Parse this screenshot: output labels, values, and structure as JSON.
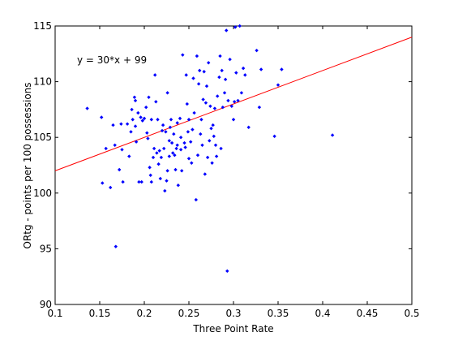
{
  "chart_data": {
    "type": "scatter",
    "title": "",
    "xlabel": "Three Point Rate",
    "ylabel": "ORtg - points per 100 possessions",
    "xlim": [
      0.1,
      0.5
    ],
    "ylim": [
      90,
      115
    ],
    "x_ticks": [
      0.1,
      0.15,
      0.2,
      0.25,
      0.3,
      0.35,
      0.4,
      0.45,
      0.5
    ],
    "x_tick_labels": [
      "0.1",
      "0.15",
      "0.2",
      "0.25",
      "0.3",
      "0.35",
      "0.4",
      "0.45",
      "0.5"
    ],
    "y_ticks": [
      90,
      95,
      100,
      105,
      110,
      115
    ],
    "y_tick_labels": [
      "90",
      "95",
      "100",
      "105",
      "110",
      "115"
    ],
    "grid": false,
    "annotation": "y = 30*x + 99",
    "marker_color": "#0000ff",
    "fit_color": "#ff0000",
    "fit_line": {
      "slope": 30,
      "intercept": 99,
      "x_range": [
        0.1,
        0.5
      ]
    },
    "points": [
      [
        0.136,
        107.6
      ],
      [
        0.152,
        106.8
      ],
      [
        0.153,
        100.9
      ],
      [
        0.157,
        104.0
      ],
      [
        0.162,
        100.5
      ],
      [
        0.165,
        106.1
      ],
      [
        0.167,
        104.3
      ],
      [
        0.168,
        95.2
      ],
      [
        0.172,
        102.1
      ],
      [
        0.174,
        106.2
      ],
      [
        0.175,
        103.9
      ],
      [
        0.176,
        101.0
      ],
      [
        0.181,
        106.2
      ],
      [
        0.183,
        103.3
      ],
      [
        0.185,
        105.5
      ],
      [
        0.186,
        107.5
      ],
      [
        0.187,
        106.6
      ],
      [
        0.189,
        108.6
      ],
      [
        0.19,
        108.3
      ],
      [
        0.19,
        106.0
      ],
      [
        0.191,
        104.6
      ],
      [
        0.193,
        107.2
      ],
      [
        0.194,
        101.0
      ],
      [
        0.196,
        106.8
      ],
      [
        0.197,
        101.0
      ],
      [
        0.198,
        106.5
      ],
      [
        0.2,
        106.7
      ],
      [
        0.202,
        107.7
      ],
      [
        0.203,
        105.4
      ],
      [
        0.204,
        104.9
      ],
      [
        0.205,
        108.6
      ],
      [
        0.206,
        102.3
      ],
      [
        0.207,
        101.6
      ],
      [
        0.208,
        101.0
      ],
      [
        0.208,
        106.6
      ],
      [
        0.21,
        103.2
      ],
      [
        0.211,
        104.0
      ],
      [
        0.212,
        110.6
      ],
      [
        0.213,
        108.2
      ],
      [
        0.214,
        103.6
      ],
      [
        0.215,
        106.6
      ],
      [
        0.216,
        102.6
      ],
      [
        0.217,
        103.8
      ],
      [
        0.218,
        101.3
      ],
      [
        0.219,
        103.2
      ],
      [
        0.22,
        105.6
      ],
      [
        0.221,
        106.1
      ],
      [
        0.222,
        104.0
      ],
      [
        0.223,
        100.2
      ],
      [
        0.224,
        105.5
      ],
      [
        0.225,
        101.1
      ],
      [
        0.226,
        102.0
      ],
      [
        0.226,
        109.0
      ],
      [
        0.228,
        103.3
      ],
      [
        0.228,
        104.7
      ],
      [
        0.229,
        105.9
      ],
      [
        0.23,
        106.6
      ],
      [
        0.231,
        104.5
      ],
      [
        0.232,
        103.6
      ],
      [
        0.233,
        105.3
      ],
      [
        0.234,
        103.4
      ],
      [
        0.235,
        102.1
      ],
      [
        0.236,
        104.0
      ],
      [
        0.237,
        106.3
      ],
      [
        0.237,
        104.3
      ],
      [
        0.238,
        100.7
      ],
      [
        0.24,
        106.7
      ],
      [
        0.241,
        105.0
      ],
      [
        0.241,
        103.9
      ],
      [
        0.242,
        102.0
      ],
      [
        0.243,
        112.4
      ],
      [
        0.245,
        104.5
      ],
      [
        0.246,
        104.1
      ],
      [
        0.247,
        110.6
      ],
      [
        0.248,
        108.0
      ],
      [
        0.249,
        105.5
      ],
      [
        0.25,
        106.6
      ],
      [
        0.25,
        103.1
      ],
      [
        0.252,
        104.6
      ],
      [
        0.253,
        102.7
      ],
      [
        0.254,
        105.7
      ],
      [
        0.255,
        110.3
      ],
      [
        0.256,
        107.2
      ],
      [
        0.258,
        99.4
      ],
      [
        0.259,
        112.3
      ],
      [
        0.26,
        103.4
      ],
      [
        0.261,
        109.8
      ],
      [
        0.262,
        111.0
      ],
      [
        0.263,
        105.3
      ],
      [
        0.264,
        106.6
      ],
      [
        0.265,
        104.3
      ],
      [
        0.266,
        108.4
      ],
      [
        0.267,
        110.9
      ],
      [
        0.268,
        101.7
      ],
      [
        0.269,
        108.1
      ],
      [
        0.27,
        109.6
      ],
      [
        0.271,
        103.2
      ],
      [
        0.272,
        111.7
      ],
      [
        0.273,
        104.7
      ],
      [
        0.274,
        107.8
      ],
      [
        0.275,
        105.8
      ],
      [
        0.276,
        102.7
      ],
      [
        0.277,
        106.1
      ],
      [
        0.278,
        105.1
      ],
      [
        0.279,
        107.6
      ],
      [
        0.28,
        104.3
      ],
      [
        0.281,
        103.3
      ],
      [
        0.282,
        108.7
      ],
      [
        0.284,
        110.4
      ],
      [
        0.285,
        112.3
      ],
      [
        0.286,
        104.0
      ],
      [
        0.287,
        111.0
      ],
      [
        0.288,
        107.7
      ],
      [
        0.29,
        109.0
      ],
      [
        0.291,
        110.2
      ],
      [
        0.292,
        114.6
      ],
      [
        0.293,
        93.0
      ],
      [
        0.294,
        108.3
      ],
      [
        0.296,
        112.0
      ],
      [
        0.298,
        107.8
      ],
      [
        0.3,
        106.6
      ],
      [
        0.301,
        108.2
      ],
      [
        0.302,
        114.9
      ],
      [
        0.303,
        110.8
      ],
      [
        0.305,
        108.3
      ],
      [
        0.307,
        115.0
      ],
      [
        0.309,
        109.0
      ],
      [
        0.311,
        111.2
      ],
      [
        0.313,
        110.6
      ],
      [
        0.317,
        105.9
      ],
      [
        0.326,
        112.8
      ],
      [
        0.329,
        107.7
      ],
      [
        0.331,
        111.1
      ],
      [
        0.346,
        105.1
      ],
      [
        0.35,
        109.7
      ],
      [
        0.354,
        111.1
      ],
      [
        0.411,
        105.2
      ]
    ]
  }
}
